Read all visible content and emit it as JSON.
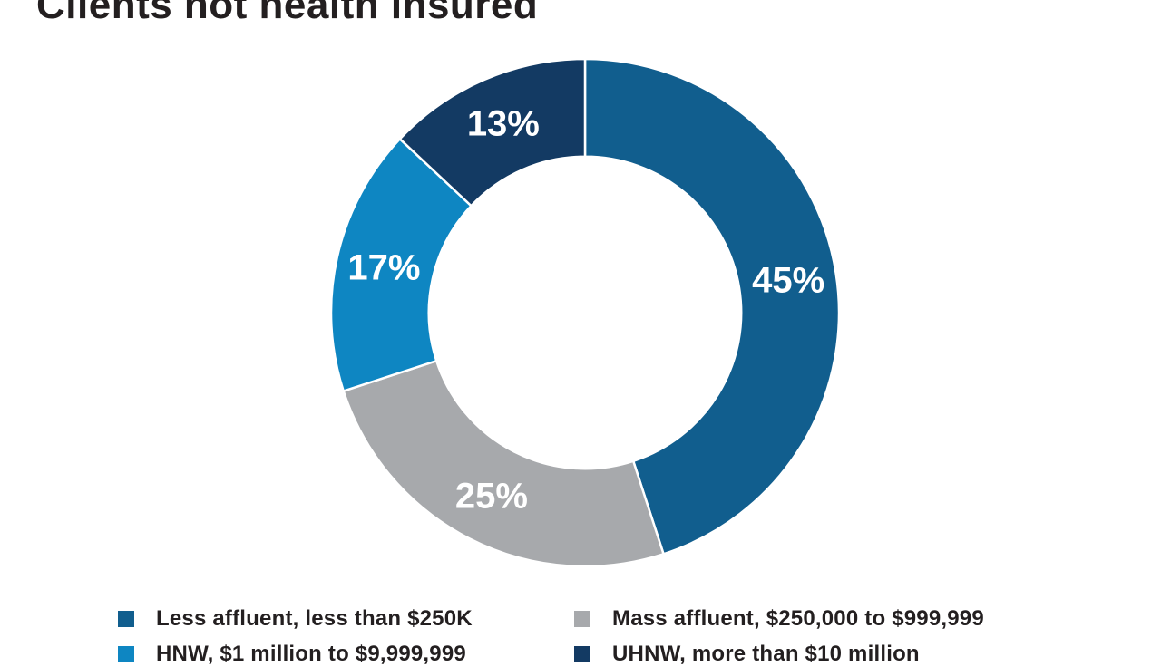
{
  "title": "Clients not health insured",
  "chart_data": {
    "type": "pie",
    "subtype": "donut",
    "title": "Clients not health insured",
    "categories": [
      "Less affluent, less than $250K",
      "Mass affluent, $250,000 to $999,999",
      "HNW, $1 million to $9,999,999",
      "UHNW, more than $10 million"
    ],
    "values": [
      45,
      25,
      17,
      13
    ],
    "labels": [
      "45%",
      "25%",
      "17%",
      "13%"
    ],
    "colors": [
      "#115e8e",
      "#a7a9ac",
      "#0e86c2",
      "#133a63"
    ],
    "label_color": "#ffffff",
    "start_angle_deg": 0,
    "direction": "clockwise",
    "inner_radius_ratio": 0.615,
    "legend_position": "bottom",
    "separator_color": "#ffffff"
  },
  "legend": {
    "items": [
      {
        "label": "Less affluent, less than $250K",
        "color": "#115e8e"
      },
      {
        "label": "Mass affluent, $250,000 to $999,999",
        "color": "#a7a9ac"
      },
      {
        "label": "HNW, $1 million to $9,999,999",
        "color": "#0e86c2"
      },
      {
        "label": "UHNW, more than $10 million",
        "color": "#133a63"
      }
    ]
  }
}
